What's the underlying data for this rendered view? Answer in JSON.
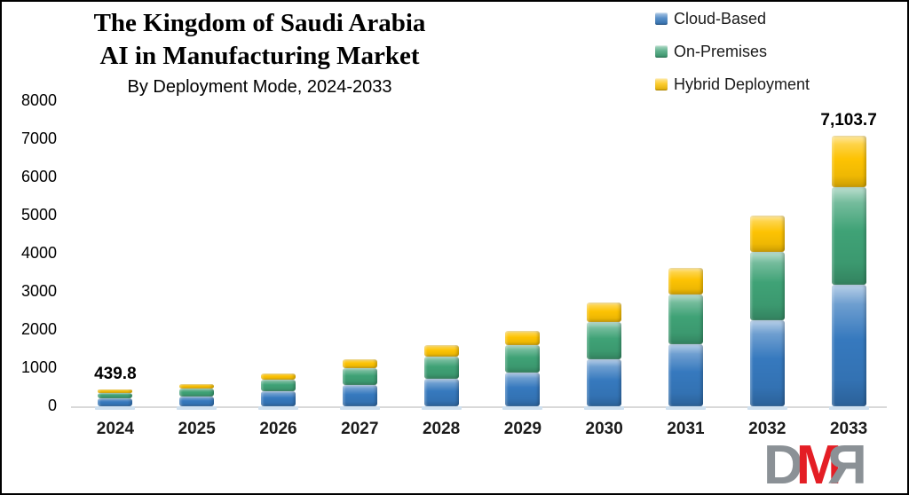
{
  "title": {
    "line1": "The Kingdom of Saudi Arabia",
    "line2": "AI in Manufacturing Market",
    "subtitle": "By Deployment Mode, 2024-2033"
  },
  "legend": {
    "position": "top-right",
    "items": [
      {
        "label": "Cloud-Based",
        "color": "#3679be"
      },
      {
        "label": "On-Premises",
        "color": "#3fa276"
      },
      {
        "label": "Hybrid Deployment",
        "color": "#fdc303"
      }
    ]
  },
  "chart_data": {
    "type": "bar",
    "stacked": true,
    "title": "The Kingdom of Saudi Arabia AI in Manufacturing Market By Deployment Mode, 2024-2033",
    "categories": [
      "2024",
      "2025",
      "2026",
      "2027",
      "2028",
      "2029",
      "2030",
      "2031",
      "2032",
      "2033"
    ],
    "series": [
      {
        "name": "Cloud-Based",
        "color": "#3679be",
        "values": [
          198,
          261,
          387,
          554,
          725,
          889,
          1229,
          1629,
          2250,
          3197
        ]
      },
      {
        "name": "On-Premises",
        "color": "#3fa276",
        "values": [
          158,
          209,
          310,
          443,
          580,
          711,
          983,
          1303,
          1800,
          2557
        ]
      },
      {
        "name": "Hybrid Deployment",
        "color": "#fdc303",
        "values": [
          83.8,
          110,
          163,
          233,
          305,
          375,
          518,
          688,
          950,
          1349.7
        ]
      }
    ],
    "totals": [
      439.8,
      580,
      860,
      1230,
      1610,
      1975,
      2730,
      3620,
      5000,
      7103.7
    ],
    "data_labels": [
      {
        "category": "2024",
        "text": "439.8"
      },
      {
        "category": "2033",
        "text": "7,103.7"
      }
    ],
    "y_axis": {
      "min": 0,
      "max": 8000,
      "step": 1000,
      "ticks": [
        "0",
        "1000",
        "2000",
        "3000",
        "4000",
        "5000",
        "6000",
        "7000",
        "8000"
      ]
    },
    "grid": false,
    "legend_position": "top-right"
  },
  "watermark": {
    "letters": [
      {
        "char": "D",
        "color": "#8b9196",
        "mirrored": false
      },
      {
        "char": "M",
        "color": "#e41e25",
        "mirrored": false
      },
      {
        "char": "R",
        "color": "#8b9196",
        "mirrored": true
      }
    ]
  },
  "colors": {
    "background": "#ffffff",
    "frame_border": "#000000",
    "baseline": "#d9d9d9",
    "pedestal": "#cfe0ef"
  }
}
